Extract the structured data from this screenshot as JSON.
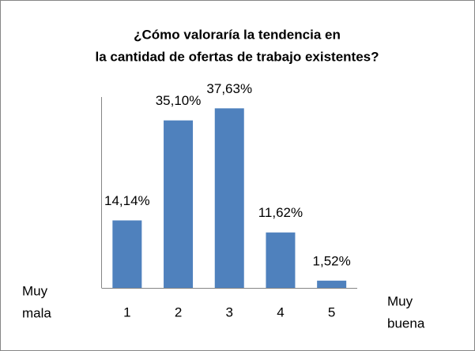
{
  "chart_data": {
    "type": "bar",
    "title": [
      "¿Cómo valoraría la tendencia en",
      "la cantidad de ofertas de trabajo existentes?"
    ],
    "categories": [
      "1",
      "2",
      "3",
      "4",
      "5"
    ],
    "values": [
      14.14,
      35.1,
      37.63,
      11.62,
      1.52
    ],
    "value_labels": [
      "14,14%",
      "35,10%",
      "37,63%",
      "11,62%",
      "1,52%"
    ],
    "color": "#4f81bd",
    "ylim": [
      0,
      40
    ],
    "annotations": [
      [
        "Muy",
        "mala"
      ],
      [
        "Muy",
        "buena"
      ]
    ]
  }
}
